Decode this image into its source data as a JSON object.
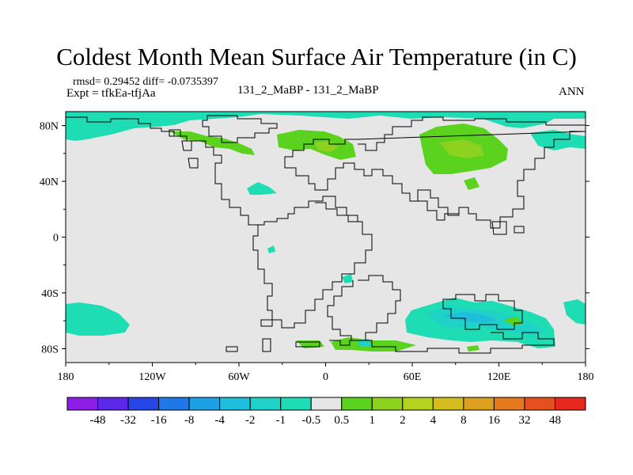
{
  "title": "Coldest Month Mean Surface Air Temperature (in C)",
  "stats": "rmsd= 0.29452 diff= -0.0735397",
  "experiment": "Expt = tfkEa-tfjAa",
  "comparison": "131_2_MaBP - 131_2_MaBP",
  "season": "ANN",
  "map": {
    "background_color": "#e6e6e6",
    "lat_ticks": [
      {
        "lat": 80,
        "label": "80N"
      },
      {
        "lat": 40,
        "label": "40N"
      },
      {
        "lat": 0,
        "label": "0"
      },
      {
        "lat": -40,
        "label": "40S"
      },
      {
        "lat": -80,
        "label": "80S"
      }
    ],
    "lon_ticks": [
      {
        "lon": -180,
        "label": "180"
      },
      {
        "lon": -120,
        "label": "120W"
      },
      {
        "lon": -60,
        "label": "60W"
      },
      {
        "lon": 0,
        "label": "0"
      },
      {
        "lon": 60,
        "label": "60E"
      },
      {
        "lon": 120,
        "label": "120E"
      },
      {
        "lon": 180,
        "label": "180"
      }
    ],
    "lat_range": [
      -90,
      90
    ],
    "lon_range": [
      -180,
      180
    ]
  },
  "colorbar": {
    "colors": [
      "#8c1ee6",
      "#5a28e6",
      "#2846e6",
      "#1e78e6",
      "#1ea0e6",
      "#1ebedc",
      "#1ed2c8",
      "#1edcb4",
      "#e6e6e6",
      "#5ad21e",
      "#8cd21e",
      "#b4d21e",
      "#d2be1e",
      "#dca01e",
      "#e6781e",
      "#e6501e",
      "#e6281e"
    ],
    "labels": [
      "-48",
      "-32",
      "-16",
      "-8",
      "-4",
      "-2",
      "-1",
      "-0.5",
      "0.5",
      "1",
      "2",
      "4",
      "8",
      "16",
      "32",
      "48"
    ]
  },
  "anomaly_colors": {
    "cool": "#1edcb4",
    "cool_strong": "#1ed2c8",
    "cool_stronger": "#1ebedc",
    "warm": "#5ad21e",
    "warm_strong": "#8cd21e"
  }
}
